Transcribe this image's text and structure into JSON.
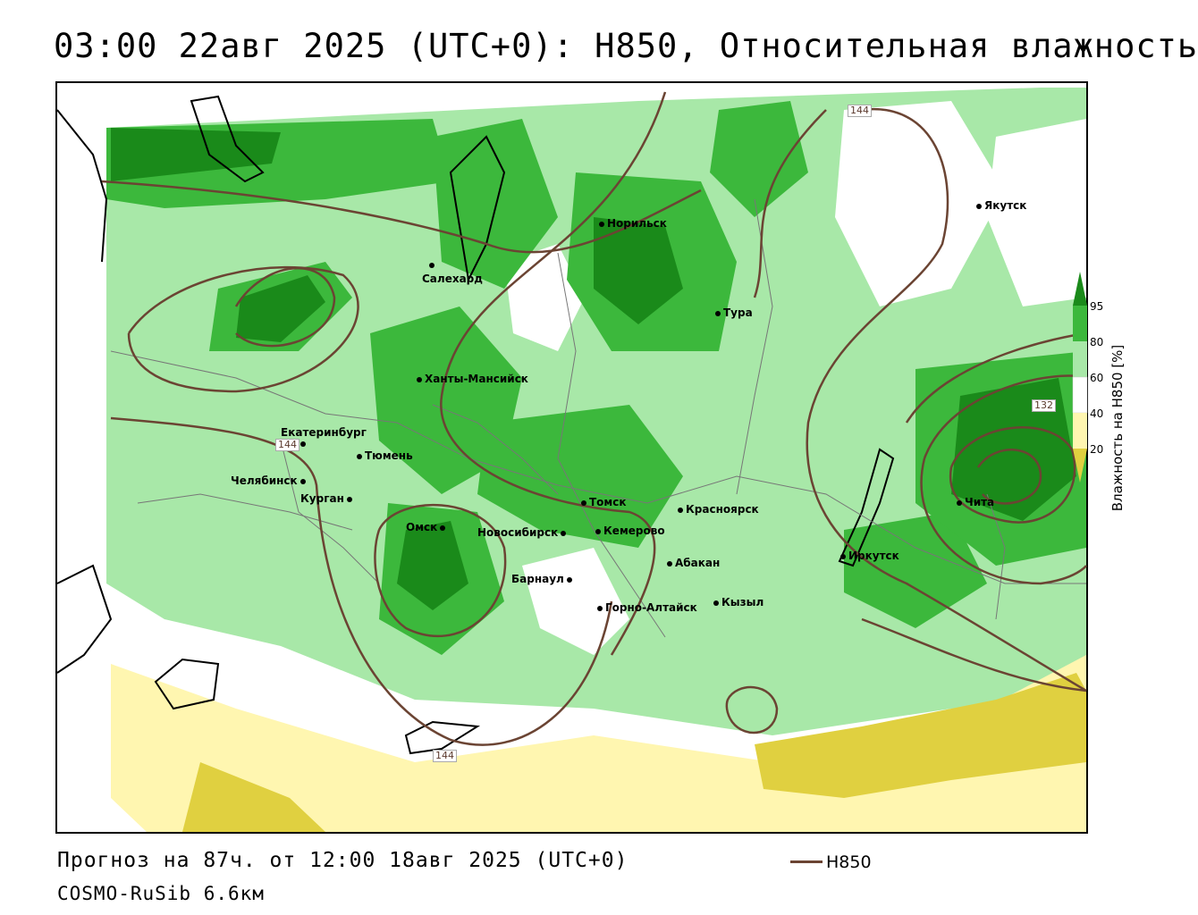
{
  "header": {
    "title": "03:00 22авг 2025 (UTC+0): H850, Относительная влажность"
  },
  "footer": {
    "forecast": "Прогноз на 87ч. от 12:00 18авг 2025 (UTC+0)",
    "model": "COSMO-RuSib 6.6км",
    "legend_label": "H850"
  },
  "colorbar": {
    "title": "Влажность на H850 [%]",
    "ticks": [
      "95",
      "80",
      "60",
      "40",
      "20"
    ],
    "colors": {
      "above95": "#1a8a1a",
      "80_95": "#3cb83c",
      "60_80": "#a8e8a8",
      "40_60": "#ffffff",
      "20_40": "#fff6b0",
      "below20": "#e0d040"
    }
  },
  "contour_labels": [
    "144",
    "144",
    "144",
    "132"
  ],
  "cities": [
    "Якутск",
    "Норильск",
    "Салехард",
    "Тура",
    "Ханты-Мансийск",
    "Екатеринбург",
    "Тюмень",
    "Челябинск",
    "Курган",
    "Омск",
    "Новосибирск",
    "Томск",
    "Красноярск",
    "Кемерово",
    "Барнаул",
    "Абакан",
    "Горно-Алтайск",
    "Кызыл",
    "Иркутск",
    "Чита"
  ]
}
